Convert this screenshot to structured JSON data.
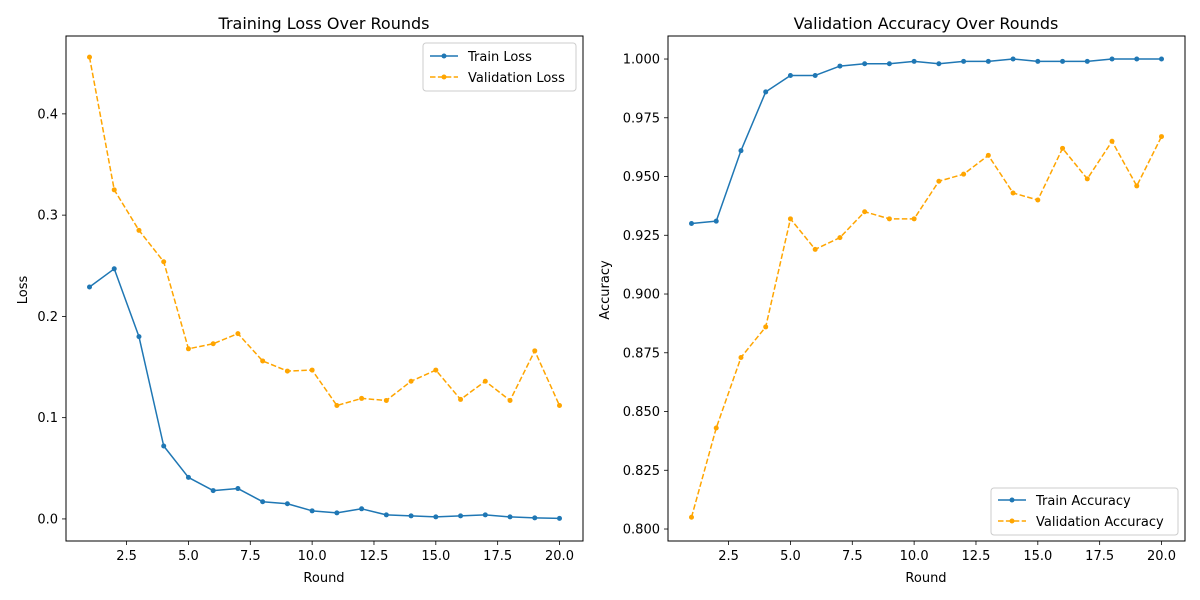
{
  "chart_data": [
    {
      "type": "line",
      "title": "Training Loss Over Rounds",
      "xlabel": "Round",
      "ylabel": "Loss",
      "xlim": [
        0.05,
        20.95
      ],
      "ylim": [
        -0.0218,
        0.4769
      ],
      "xticks": [
        2.5,
        5.0,
        7.5,
        10.0,
        12.5,
        15.0,
        17.5,
        20.0
      ],
      "xtick_labels": [
        "2.5",
        "5.0",
        "7.5",
        "10.0",
        "12.5",
        "15.0",
        "17.5",
        "20.0"
      ],
      "yticks": [
        0.0,
        0.1,
        0.2,
        0.3,
        0.4
      ],
      "ytick_labels": [
        "0.0",
        "0.1",
        "0.2",
        "0.3",
        "0.4"
      ],
      "grid": false,
      "legend_position": "top-right",
      "x": [
        1,
        2,
        3,
        4,
        5,
        6,
        7,
        8,
        9,
        10,
        11,
        12,
        13,
        14,
        15,
        16,
        17,
        18,
        19,
        20
      ],
      "series": [
        {
          "name": "Train Loss",
          "color": "#1f77b4",
          "style": "solid",
          "values": [
            0.229,
            0.247,
            0.18,
            0.072,
            0.041,
            0.028,
            0.03,
            0.017,
            0.015,
            0.008,
            0.006,
            0.01,
            0.004,
            0.003,
            0.002,
            0.003,
            0.004,
            0.002,
            0.001,
            0.0005
          ]
        },
        {
          "name": "Validation Loss",
          "color": "#ffa500",
          "style": "dashed",
          "values": [
            0.456,
            0.325,
            0.285,
            0.254,
            0.168,
            0.173,
            0.183,
            0.156,
            0.146,
            0.147,
            0.112,
            0.119,
            0.117,
            0.136,
            0.147,
            0.118,
            0.136,
            0.117,
            0.166,
            0.112
          ]
        }
      ]
    },
    {
      "type": "line",
      "title": "Validation Accuracy Over Rounds",
      "xlabel": "Round",
      "ylabel": "Accuracy",
      "xlim": [
        0.05,
        20.95
      ],
      "ylim": [
        0.7949,
        1.0098
      ],
      "xticks": [
        2.5,
        5.0,
        7.5,
        10.0,
        12.5,
        15.0,
        17.5,
        20.0
      ],
      "xtick_labels": [
        "2.5",
        "5.0",
        "7.5",
        "10.0",
        "12.5",
        "15.0",
        "17.5",
        "20.0"
      ],
      "yticks": [
        0.8,
        0.825,
        0.85,
        0.875,
        0.9,
        0.925,
        0.95,
        0.975,
        1.0
      ],
      "ytick_labels": [
        "0.800",
        "0.825",
        "0.850",
        "0.875",
        "0.900",
        "0.925",
        "0.950",
        "0.975",
        "1.000"
      ],
      "grid": false,
      "legend_position": "bottom-right",
      "x": [
        1,
        2,
        3,
        4,
        5,
        6,
        7,
        8,
        9,
        10,
        11,
        12,
        13,
        14,
        15,
        16,
        17,
        18,
        19,
        20
      ],
      "series": [
        {
          "name": "Train Accuracy",
          "color": "#1f77b4",
          "style": "solid",
          "values": [
            0.93,
            0.931,
            0.961,
            0.986,
            0.993,
            0.993,
            0.997,
            0.998,
            0.998,
            0.999,
            0.998,
            0.999,
            0.999,
            1.0,
            0.999,
            0.999,
            0.999,
            1.0,
            1.0,
            1.0
          ]
        },
        {
          "name": "Validation Accuracy",
          "color": "#ffa500",
          "style": "dashed",
          "values": [
            0.805,
            0.843,
            0.873,
            0.886,
            0.932,
            0.919,
            0.924,
            0.935,
            0.932,
            0.932,
            0.948,
            0.951,
            0.959,
            0.943,
            0.94,
            0.962,
            0.949,
            0.965,
            0.946,
            0.967
          ]
        }
      ]
    }
  ]
}
